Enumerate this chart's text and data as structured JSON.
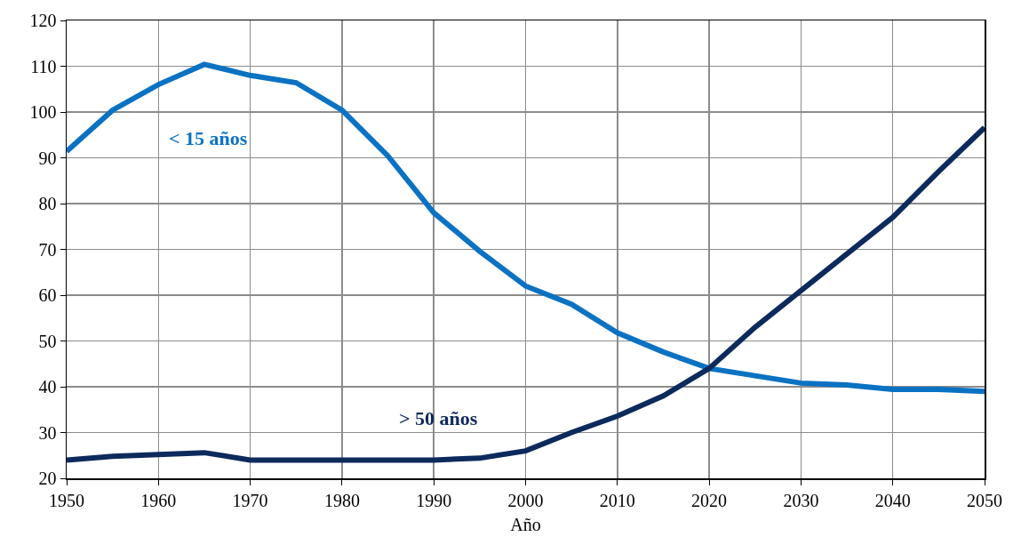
{
  "chart_data": {
    "type": "line",
    "xlabel": "Año",
    "x": [
      1950,
      1955,
      1960,
      1965,
      1970,
      1975,
      1980,
      1985,
      1990,
      1995,
      2000,
      2005,
      2010,
      2015,
      2020,
      2025,
      2030,
      2035,
      2040,
      2045,
      2050
    ],
    "series": [
      {
        "name": "< 15 años",
        "color": "#0a72c2",
        "values": [
          91.4,
          100.4,
          106,
          110.4,
          108,
          106.4,
          100.4,
          90.4,
          78,
          69.6,
          62,
          58,
          51.8,
          47.6,
          44,
          42.4,
          40.8,
          40.4,
          39.4,
          39.4,
          39
        ]
      },
      {
        "name": "> 50 años",
        "color": "#0d2a5c",
        "values": [
          24,
          24.8,
          25.2,
          25.6,
          24,
          24,
          24,
          24,
          24,
          24.4,
          26,
          30,
          33.6,
          38,
          44,
          53,
          61,
          69,
          77,
          87,
          96.6
        ]
      }
    ],
    "xlim": [
      1950,
      2050
    ],
    "xticks": [
      1950,
      1960,
      1970,
      1980,
      1990,
      2000,
      2010,
      2020,
      2030,
      2040,
      2050
    ],
    "ylim": [
      20,
      120
    ],
    "yticks": [
      20,
      30,
      40,
      50,
      60,
      70,
      80,
      90,
      100,
      110,
      120
    ],
    "grid": true,
    "legend": false,
    "marker": "none",
    "line_style": "solid"
  }
}
